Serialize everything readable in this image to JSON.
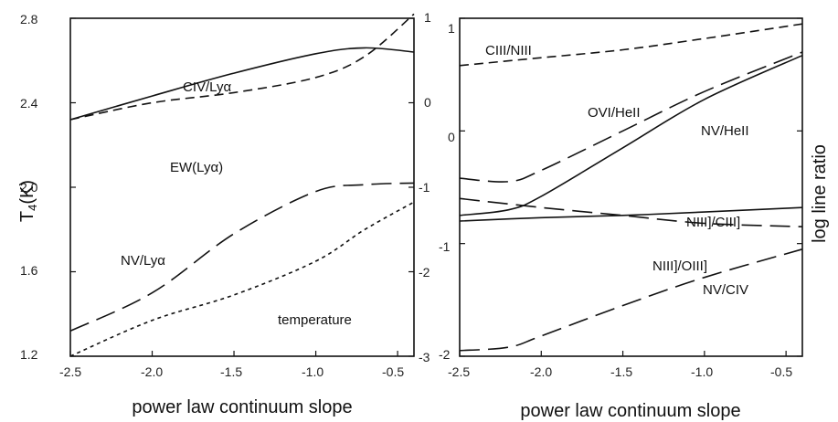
{
  "chart_data": [
    {
      "type": "line",
      "xlabel": "power law continuum slope",
      "ylabel_left": "T4(K)",
      "xlim": [
        -2.5,
        -0.4
      ],
      "ylim_left": [
        1.2,
        2.8
      ],
      "ylim_right": [
        -3,
        1
      ],
      "xticks": [
        "-2.5",
        "-2.0",
        "-1.5",
        "-1.0",
        "-0.5"
      ],
      "yticks_left": [
        "1.2",
        "1.6",
        "2.0",
        "2.4",
        "2.8"
      ],
      "yticks_right": [
        "-3",
        "-2",
        "-1",
        "0",
        "1"
      ],
      "series": [
        {
          "name": "CIV/Lyα",
          "axis": "right",
          "style": "solid",
          "x": [
            -2.5,
            -2.0,
            -1.5,
            -1.0,
            -0.7,
            -0.4
          ],
          "y": [
            -0.2,
            0.08,
            0.35,
            0.58,
            0.65,
            0.6
          ]
        },
        {
          "name": "EW(Lyα)",
          "axis": "right",
          "style": "dashed",
          "x": [
            -2.5,
            -2.0,
            -1.5,
            -1.0,
            -0.7,
            -0.4
          ],
          "y": [
            -0.2,
            0.0,
            0.12,
            0.3,
            0.55,
            1.05
          ]
        },
        {
          "name": "NV/Lyα",
          "axis": "right",
          "style": "long-dash",
          "x": [
            -2.5,
            -2.0,
            -1.5,
            -1.0,
            -0.7,
            -0.4
          ],
          "y": [
            -2.7,
            -2.25,
            -1.55,
            -1.05,
            -0.97,
            -0.95
          ]
        },
        {
          "name": "temperature",
          "axis": "left",
          "style": "short-dash",
          "x": [
            -2.5,
            -2.0,
            -1.5,
            -1.0,
            -0.7,
            -0.4
          ],
          "y": [
            1.2,
            1.37,
            1.49,
            1.65,
            1.8,
            1.93
          ]
        }
      ]
    },
    {
      "type": "line",
      "xlabel": "power law continuum slope",
      "ylabel": "log line ratio",
      "xlim": [
        -2.5,
        -0.4
      ],
      "ylim": [
        -2,
        1
      ],
      "xticks": [
        "-2.5",
        "-2.0",
        "-1.5",
        "-1.0",
        "-0.5"
      ],
      "yticks": [
        "-2",
        "-1",
        "0",
        "1"
      ],
      "series": [
        {
          "name": "CIII/NIII",
          "style": "dashed",
          "x": [
            -2.5,
            -2.0,
            -1.5,
            -1.0,
            -0.4
          ],
          "y": [
            0.58,
            0.65,
            0.72,
            0.82,
            0.95
          ]
        },
        {
          "name": "OVI/HeII",
          "style": "long-dash",
          "x": [
            -2.5,
            -2.2,
            -2.0,
            -1.5,
            -1.0,
            -0.4
          ],
          "y": [
            -0.42,
            -0.45,
            -0.35,
            0.0,
            0.35,
            0.7
          ]
        },
        {
          "name": "NV/HeII",
          "style": "solid",
          "x": [
            -2.5,
            -2.2,
            -2.0,
            -1.5,
            -1.0,
            -0.4
          ],
          "y": [
            -0.75,
            -0.7,
            -0.58,
            -0.15,
            0.28,
            0.67
          ]
        },
        {
          "name": "NIII]/CIII]",
          "style": "solid",
          "x": [
            -2.5,
            -2.0,
            -1.5,
            -1.0,
            -0.4
          ],
          "y": [
            -0.8,
            -0.77,
            -0.75,
            -0.72,
            -0.68
          ]
        },
        {
          "name": "NIII]/OIII]",
          "style": "long-dash",
          "x": [
            -2.5,
            -2.0,
            -1.5,
            -1.0,
            -0.4
          ],
          "y": [
            -0.6,
            -0.68,
            -0.75,
            -0.82,
            -0.85
          ]
        },
        {
          "name": "NV/CIV",
          "style": "long-dash",
          "x": [
            -2.5,
            -2.2,
            -2.0,
            -1.5,
            -1.0,
            -0.4
          ],
          "y": [
            -1.95,
            -1.92,
            -1.82,
            -1.55,
            -1.3,
            -1.05
          ]
        }
      ]
    }
  ]
}
